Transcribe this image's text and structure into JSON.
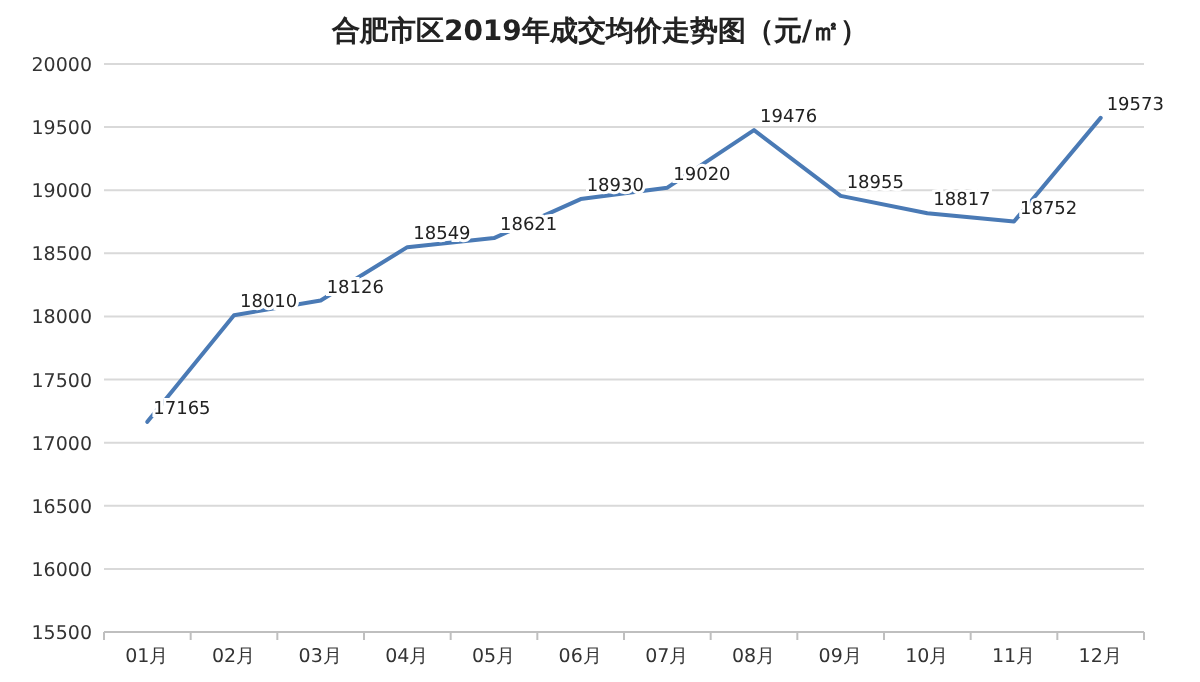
{
  "chart_data": {
    "type": "line",
    "title": "合肥市区2019年成交均价走势图（元/㎡）",
    "categories": [
      "01月",
      "02月",
      "03月",
      "04月",
      "05月",
      "06月",
      "07月",
      "08月",
      "09月",
      "10月",
      "11月",
      "12月"
    ],
    "series": [
      {
        "color": "#4a7ab5",
        "values": [
          17165,
          18010,
          18126,
          18549,
          18621,
          18930,
          19020,
          19476,
          18955,
          18817,
          18752,
          19573
        ]
      }
    ],
    "ylim": [
      15500,
      20000
    ],
    "yticks": [
      15500,
      16000,
      16500,
      17000,
      17500,
      18000,
      18500,
      19000,
      19500,
      20000
    ],
    "grid": "y",
    "data_labels": true
  }
}
